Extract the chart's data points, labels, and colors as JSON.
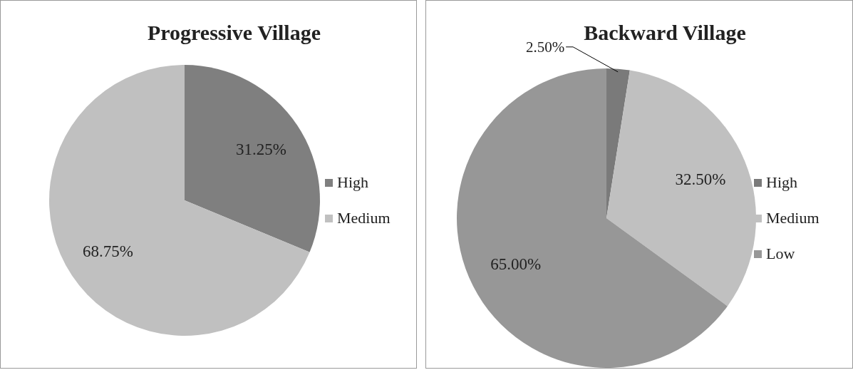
{
  "chart_data": [
    {
      "type": "pie",
      "title": "Progressive Village",
      "categories": [
        "High",
        "Medium"
      ],
      "values": [
        31.25,
        68.75
      ],
      "colors": [
        "#7f7f7f",
        "#c0c0c0"
      ],
      "value_labels": [
        "31.25%",
        "68.75%"
      ],
      "legend": "right"
    },
    {
      "type": "pie",
      "title": "Backward Village",
      "categories": [
        "High",
        "Medium",
        "Low"
      ],
      "values": [
        2.5,
        32.5,
        65.0
      ],
      "colors": [
        "#7a7a7a",
        "#c0c0c0",
        "#979797"
      ],
      "value_labels": [
        "2.50%",
        "32.50%",
        "65.00%"
      ],
      "legend": "right"
    }
  ]
}
